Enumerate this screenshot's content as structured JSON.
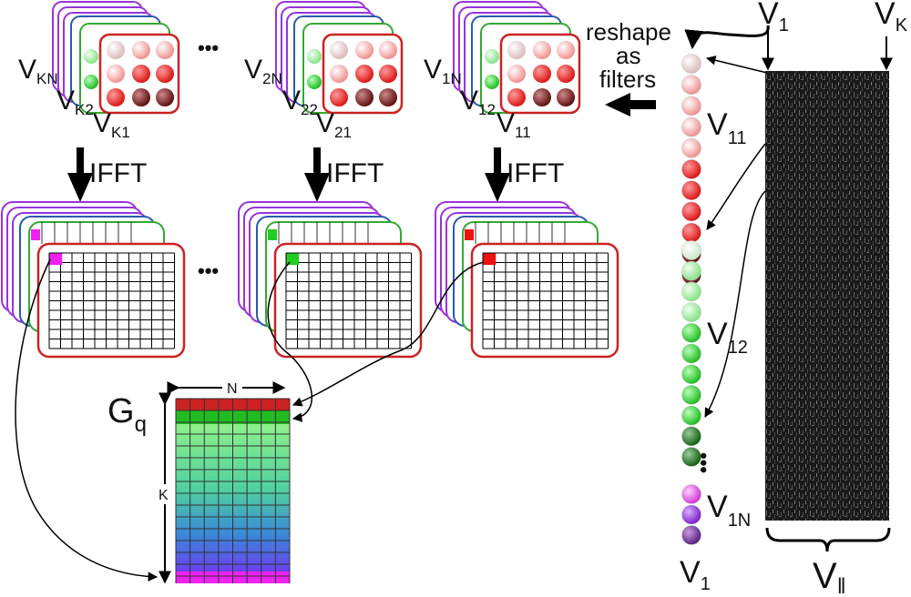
{
  "texts": {
    "v1_top": "V",
    "v1_top_sub": "1",
    "vk_top": "V",
    "vk_top_sub": "K",
    "reshape": "reshape",
    "as": "as",
    "filters": "filters",
    "ellipsis": "•••",
    "ifft": "IFFT",
    "v11": "V",
    "v11_sub": "11",
    "v12": "V",
    "v12_sub": "12",
    "v1n": "V",
    "v1n_sub": "1N",
    "v1_bottom": "V",
    "v1_bottom_sub": "1",
    "vpar": "V",
    "vpar_sub": "‖",
    "gq": "G",
    "gq_sub": "q",
    "n_label": "N",
    "k_label": "K"
  },
  "stacks": [
    {
      "id": "k",
      "labels": [
        {
          "t": "V",
          "s": "KN"
        },
        {
          "t": "V",
          "s": "K2"
        },
        {
          "t": "V",
          "s": "K1"
        }
      ]
    },
    {
      "id": "2",
      "labels": [
        {
          "t": "V",
          "s": "2N"
        },
        {
          "t": "V",
          "s": "22"
        },
        {
          "t": "V",
          "s": "21"
        }
      ]
    },
    {
      "id": "1",
      "labels": [
        {
          "t": "V",
          "s": "1N"
        },
        {
          "t": "V",
          "s": "12"
        },
        {
          "t": "V",
          "s": "11"
        }
      ]
    }
  ],
  "colors": {
    "red": "#cc2222",
    "green": "#33aa33",
    "blue": "#2244aa",
    "purple": "#9933dd",
    "magenta": "#ee22ee",
    "marker_red": "#ee1111",
    "marker_green": "#22cc22"
  }
}
